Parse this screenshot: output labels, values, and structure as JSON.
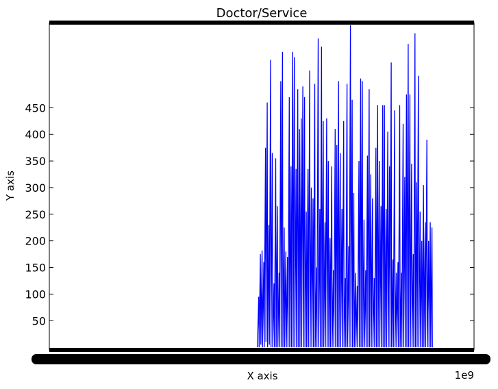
{
  "chart_data": {
    "type": "line",
    "title": "Doctor/Service",
    "xlabel": "X axis",
    "ylabel": "Y axis",
    "x_offset_label": "1e9",
    "y_ticks": [
      50,
      100,
      150,
      200,
      250,
      300,
      350,
      400,
      450
    ],
    "ylim": [
      -5,
      610
    ],
    "xlim": [
      0,
      1
    ],
    "grid": false,
    "legend": "none",
    "series_color": "#0000ff",
    "notes_hidden": "",
    "series": [
      {
        "values": [
          [
            0.49,
            0
          ],
          [
            0.493,
            95
          ],
          [
            0.494,
            0
          ],
          [
            0.497,
            175
          ],
          [
            0.498,
            5
          ],
          [
            0.501,
            182
          ],
          [
            0.502,
            0
          ],
          [
            0.505,
            160
          ],
          [
            0.506,
            0
          ],
          [
            0.509,
            375
          ],
          [
            0.51,
            10
          ],
          [
            0.513,
            460
          ],
          [
            0.514,
            0
          ],
          [
            0.517,
            230
          ],
          [
            0.518,
            5
          ],
          [
            0.521,
            540
          ],
          [
            0.522,
            0
          ],
          [
            0.525,
            365
          ],
          [
            0.526,
            0
          ],
          [
            0.529,
            120
          ],
          [
            0.53,
            0
          ],
          [
            0.533,
            355
          ],
          [
            0.534,
            0
          ],
          [
            0.537,
            265
          ],
          [
            0.538,
            0
          ],
          [
            0.541,
            140
          ],
          [
            0.542,
            0
          ],
          [
            0.545,
            500
          ],
          [
            0.546,
            0
          ],
          [
            0.549,
            555
          ],
          [
            0.55,
            0
          ],
          [
            0.553,
            225
          ],
          [
            0.554,
            0
          ],
          [
            0.557,
            180
          ],
          [
            0.558,
            0
          ],
          [
            0.561,
            170
          ],
          [
            0.562,
            0
          ],
          [
            0.565,
            470
          ],
          [
            0.566,
            0
          ],
          [
            0.569,
            340
          ],
          [
            0.57,
            0
          ],
          [
            0.573,
            555
          ],
          [
            0.574,
            0
          ],
          [
            0.577,
            545
          ],
          [
            0.578,
            0
          ],
          [
            0.581,
            335
          ],
          [
            0.582,
            0
          ],
          [
            0.585,
            485
          ],
          [
            0.586,
            0
          ],
          [
            0.589,
            410
          ],
          [
            0.59,
            0
          ],
          [
            0.593,
            430
          ],
          [
            0.594,
            0
          ],
          [
            0.597,
            490
          ],
          [
            0.598,
            0
          ],
          [
            0.601,
            470
          ],
          [
            0.602,
            0
          ],
          [
            0.605,
            255
          ],
          [
            0.606,
            0
          ],
          [
            0.609,
            335
          ],
          [
            0.61,
            0
          ],
          [
            0.613,
            520
          ],
          [
            0.614,
            0
          ],
          [
            0.617,
            300
          ],
          [
            0.618,
            0
          ],
          [
            0.621,
            280
          ],
          [
            0.622,
            0
          ],
          [
            0.625,
            495
          ],
          [
            0.626,
            0
          ],
          [
            0.629,
            150
          ],
          [
            0.63,
            0
          ],
          [
            0.633,
            580
          ],
          [
            0.634,
            0
          ],
          [
            0.637,
            260
          ],
          [
            0.638,
            0
          ],
          [
            0.641,
            565
          ],
          [
            0.642,
            0
          ],
          [
            0.645,
            425
          ],
          [
            0.646,
            0
          ],
          [
            0.649,
            235
          ],
          [
            0.65,
            0
          ],
          [
            0.653,
            430
          ],
          [
            0.654,
            0
          ],
          [
            0.657,
            350
          ],
          [
            0.658,
            0
          ],
          [
            0.661,
            205
          ],
          [
            0.662,
            0
          ],
          [
            0.665,
            340
          ],
          [
            0.666,
            0
          ],
          [
            0.669,
            145
          ],
          [
            0.67,
            0
          ],
          [
            0.673,
            410
          ],
          [
            0.674,
            0
          ],
          [
            0.677,
            380
          ],
          [
            0.678,
            0
          ],
          [
            0.681,
            500
          ],
          [
            0.682,
            0
          ],
          [
            0.685,
            365
          ],
          [
            0.686,
            0
          ],
          [
            0.689,
            260
          ],
          [
            0.69,
            0
          ],
          [
            0.693,
            425
          ],
          [
            0.694,
            0
          ],
          [
            0.697,
            130
          ],
          [
            0.698,
            0
          ],
          [
            0.701,
            495
          ],
          [
            0.702,
            0
          ],
          [
            0.705,
            190
          ],
          [
            0.706,
            0
          ],
          [
            0.709,
            605
          ],
          [
            0.71,
            0
          ],
          [
            0.713,
            465
          ],
          [
            0.714,
            0
          ],
          [
            0.717,
            290
          ],
          [
            0.718,
            0
          ],
          [
            0.721,
            140
          ],
          [
            0.722,
            0
          ],
          [
            0.725,
            115
          ],
          [
            0.726,
            0
          ],
          [
            0.729,
            350
          ],
          [
            0.73,
            0
          ],
          [
            0.733,
            505
          ],
          [
            0.734,
            0
          ],
          [
            0.737,
            500
          ],
          [
            0.738,
            0
          ],
          [
            0.741,
            240
          ],
          [
            0.742,
            0
          ],
          [
            0.745,
            145
          ],
          [
            0.746,
            0
          ],
          [
            0.749,
            360
          ],
          [
            0.75,
            0
          ],
          [
            0.753,
            485
          ],
          [
            0.754,
            0
          ],
          [
            0.757,
            325
          ],
          [
            0.758,
            0
          ],
          [
            0.761,
            280
          ],
          [
            0.762,
            0
          ],
          [
            0.765,
            130
          ],
          [
            0.766,
            0
          ],
          [
            0.769,
            375
          ],
          [
            0.77,
            0
          ],
          [
            0.773,
            455
          ],
          [
            0.774,
            0
          ],
          [
            0.777,
            350
          ],
          [
            0.778,
            0
          ],
          [
            0.781,
            265
          ],
          [
            0.782,
            0
          ],
          [
            0.785,
            455
          ],
          [
            0.786,
            0
          ],
          [
            0.789,
            455
          ],
          [
            0.79,
            0
          ],
          [
            0.793,
            260
          ],
          [
            0.794,
            0
          ],
          [
            0.797,
            405
          ],
          [
            0.798,
            0
          ],
          [
            0.801,
            340
          ],
          [
            0.802,
            0
          ],
          [
            0.805,
            535
          ],
          [
            0.806,
            0
          ],
          [
            0.809,
            165
          ],
          [
            0.81,
            0
          ],
          [
            0.813,
            445
          ],
          [
            0.814,
            0
          ],
          [
            0.817,
            140
          ],
          [
            0.818,
            0
          ],
          [
            0.821,
            160
          ],
          [
            0.822,
            0
          ],
          [
            0.825,
            455
          ],
          [
            0.826,
            0
          ],
          [
            0.829,
            140
          ],
          [
            0.83,
            0
          ],
          [
            0.833,
            420
          ],
          [
            0.834,
            0
          ],
          [
            0.837,
            320
          ],
          [
            0.838,
            0
          ],
          [
            0.841,
            475
          ],
          [
            0.842,
            0
          ],
          [
            0.845,
            570
          ],
          [
            0.846,
            0
          ],
          [
            0.849,
            475
          ],
          [
            0.85,
            0
          ],
          [
            0.853,
            345
          ],
          [
            0.854,
            0
          ],
          [
            0.857,
            175
          ],
          [
            0.858,
            0
          ],
          [
            0.861,
            590
          ],
          [
            0.862,
            0
          ],
          [
            0.865,
            310
          ],
          [
            0.866,
            0
          ],
          [
            0.869,
            510
          ],
          [
            0.87,
            0
          ],
          [
            0.873,
            255
          ],
          [
            0.874,
            0
          ],
          [
            0.877,
            200
          ],
          [
            0.878,
            0
          ],
          [
            0.881,
            305
          ],
          [
            0.882,
            0
          ],
          [
            0.885,
            235
          ],
          [
            0.886,
            0
          ],
          [
            0.889,
            390
          ],
          [
            0.89,
            0
          ],
          [
            0.893,
            200
          ],
          [
            0.894,
            0
          ],
          [
            0.897,
            235
          ],
          [
            0.898,
            0
          ],
          [
            0.901,
            225
          ],
          [
            0.902,
            0
          ]
        ]
      }
    ]
  }
}
